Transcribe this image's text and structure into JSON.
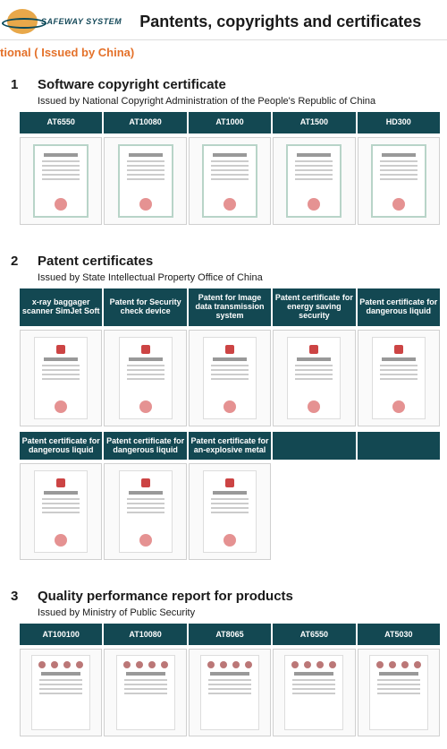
{
  "header": {
    "logo_text": "SAFEWAY SYSTEM",
    "page_title": "Pantents, copyrights and certificates"
  },
  "subhead": "tional ( Issued by China)",
  "colors": {
    "tab_bg": "#134852",
    "tab_text": "#ffffff",
    "accent": "#e4712a"
  },
  "sections": [
    {
      "num": "1",
      "title": "Software copyright certificate",
      "subtitle": "Issued by National Copyright Administration of the People's Republic of China",
      "tab_rows": [
        [
          "AT6550",
          "AT10080",
          "AT1000",
          "AT1500",
          "HD300"
        ]
      ],
      "cert_style": "green",
      "cert_rows": 1
    },
    {
      "num": "2",
      "title": "Patent certificates",
      "subtitle": "Issued by State Intellectual Property Office of China",
      "tab_rows": [
        [
          "x-ray baggager scanner SimJet Soft",
          "Patent for Security check device",
          "Patent for Image data transmission system",
          "Patent certificate for energy saving security",
          "Patent certificate for dangerous liquid"
        ],
        [
          "Patent certificate for dangerous liquid",
          "Patent certificate for dangerous liquid",
          "Patent certificate for an-explosive metal",
          "",
          ""
        ]
      ],
      "cert_style": "patent",
      "cert_rows": 2,
      "row2_count": 3
    },
    {
      "num": "3",
      "title": "Quality performance report for products",
      "subtitle": "Issued by Ministry of Public Security",
      "tab_rows": [
        [
          "AT100100",
          "AT10080",
          "AT8065",
          "AT6550",
          "AT5030"
        ]
      ],
      "cert_style": "report",
      "cert_rows": 1
    }
  ]
}
